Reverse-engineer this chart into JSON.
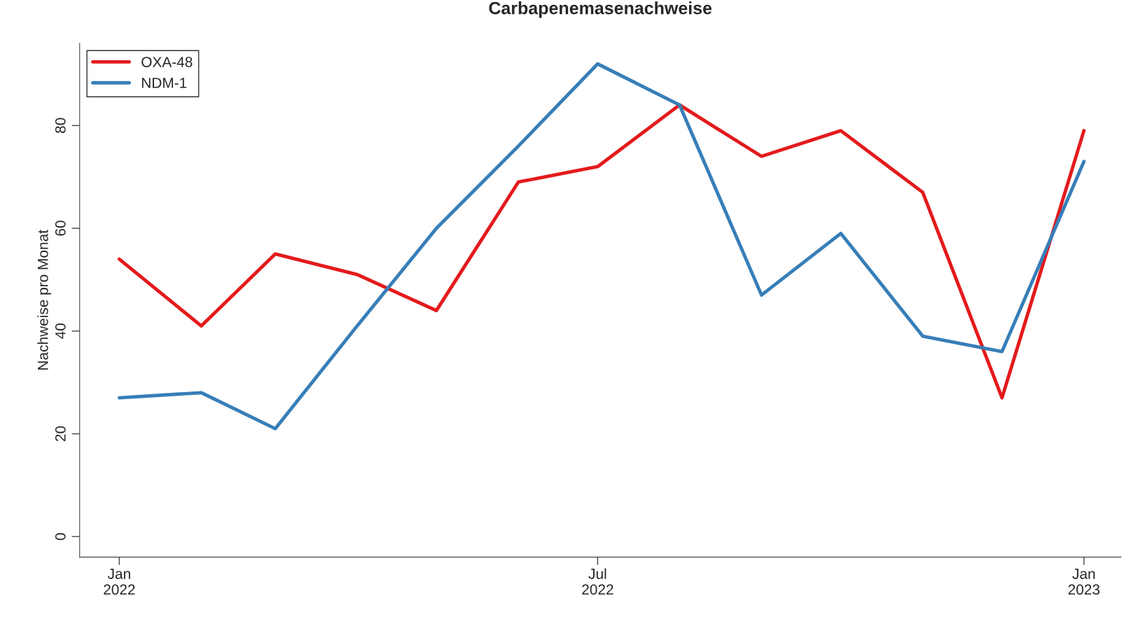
{
  "chart_data": {
    "type": "line",
    "title": "Carbapenemasenachweise",
    "ylabel": "Nachweise pro Monat",
    "x": [
      "2022-01",
      "2022-02",
      "2022-03",
      "2022-04",
      "2022-05",
      "2022-06",
      "2022-07",
      "2022-08",
      "2022-09",
      "2022-10",
      "2022-11",
      "2022-12",
      "2023-01"
    ],
    "series": [
      {
        "name": "OXA-48",
        "color": "#e41a1c",
        "values": [
          54,
          41,
          55,
          51,
          44,
          69,
          72,
          84,
          74,
          79,
          67,
          27,
          79
        ]
      },
      {
        "name": "NDM-1",
        "color": "#377eb8",
        "values": [
          27,
          28,
          21,
          41,
          60,
          76,
          92,
          84,
          47,
          59,
          39,
          36,
          73
        ]
      }
    ],
    "xlim": [
      "2021-12-17",
      "2023-01-15"
    ],
    "xticks": [
      {
        "value": "2022-01",
        "label": "Jan\n2022"
      },
      {
        "value": "2022-07",
        "label": "Jul\n2022"
      },
      {
        "value": "2023-01",
        "label": "Jan\n2023"
      }
    ],
    "ylim": [
      -4,
      96
    ],
    "yticks": [
      0,
      20,
      40,
      60,
      80
    ],
    "grid": false,
    "legend": "top left",
    "marker": "none",
    "line_style": "solid"
  }
}
